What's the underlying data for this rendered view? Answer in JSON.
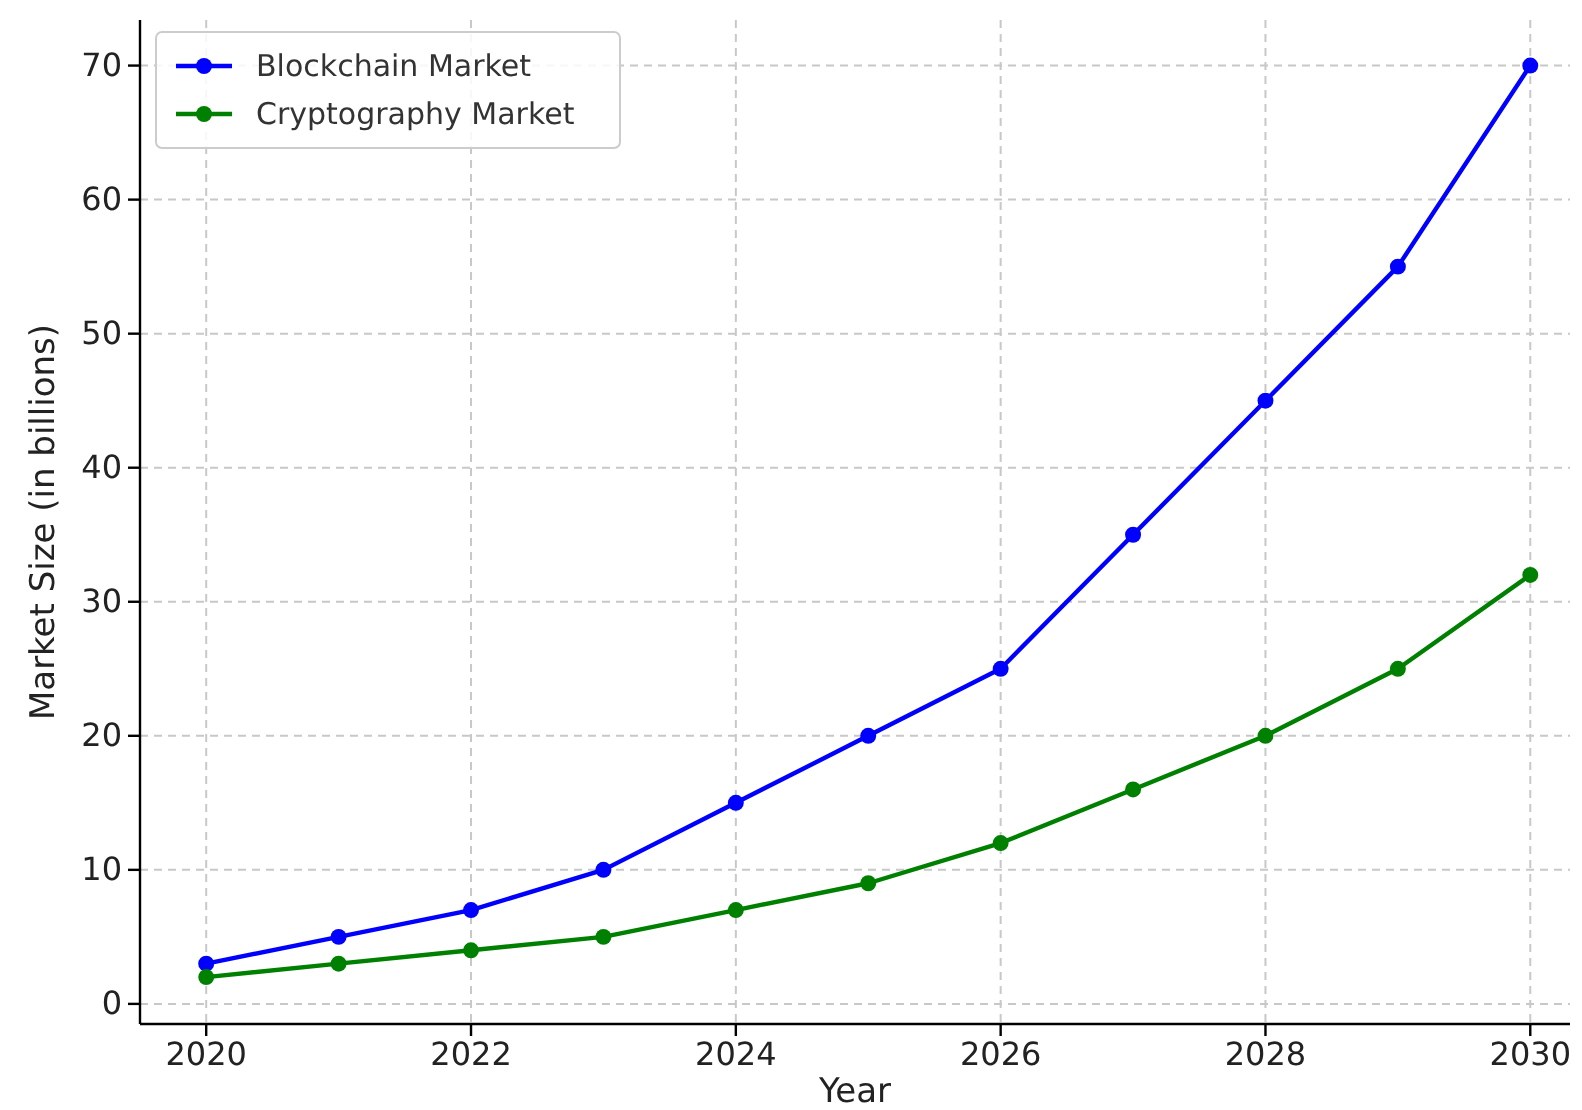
{
  "chart_data": {
    "type": "line",
    "xlabel": "Year",
    "ylabel": "Market Size (in billions)",
    "x": [
      2020,
      2021,
      2022,
      2023,
      2024,
      2025,
      2026,
      2027,
      2028,
      2029,
      2030
    ],
    "series": [
      {
        "name": "Blockchain Market",
        "color": "#0000ff",
        "values": [
          3,
          5,
          7,
          10,
          15,
          20,
          25,
          35,
          45,
          55,
          70
        ]
      },
      {
        "name": "Cryptography Market",
        "color": "#008000",
        "values": [
          2,
          3,
          4,
          5,
          7,
          9,
          12,
          16,
          20,
          25,
          32
        ]
      }
    ],
    "xlim": [
      2019.5,
      2030.3
    ],
    "xticks": [
      2020,
      2022,
      2024,
      2026,
      2028,
      2030
    ],
    "ylim": [
      -1.5,
      73.4
    ],
    "yticks": [
      0,
      10,
      20,
      30,
      40,
      50,
      60,
      70
    ],
    "grid": true,
    "legend": "top left",
    "marker": "circle",
    "line_style": "solid"
  }
}
